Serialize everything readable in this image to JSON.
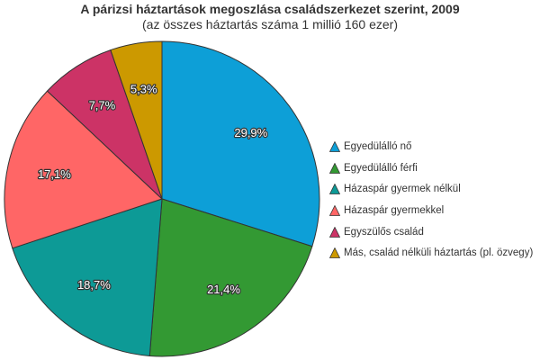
{
  "chart_data": {
    "type": "pie",
    "title": "A párizsi háztartások megoszlása családszerkezet szerint, 2009",
    "subtitle": "(az összes háztartás száma 1 millió 160 ezer)",
    "legend_position": "right",
    "start_angle": "top, clockwise",
    "slices": [
      {
        "label": "Egyedülálló nő",
        "value": 29.9,
        "display": "29,9%",
        "color": "#0d9fd7"
      },
      {
        "label": "Egyedülálló férfi",
        "value": 21.4,
        "display": "21,4%",
        "color": "#339933"
      },
      {
        "label": "Házaspár gyermek nélkül",
        "value": 18.7,
        "display": "18,7%",
        "color": "#0d9a96"
      },
      {
        "label": "Házaspár gyermekkel",
        "value": 17.1,
        "display": "17,1%",
        "color": "#ff6666"
      },
      {
        "label": "Egyszülős család",
        "value": 7.7,
        "display": "7,7%",
        "color": "#cc3366"
      },
      {
        "label": "Más, család nélküli háztartás (pl. özvegy)",
        "value": 5.3,
        "display": "5,3%",
        "color": "#cc9900"
      }
    ]
  }
}
